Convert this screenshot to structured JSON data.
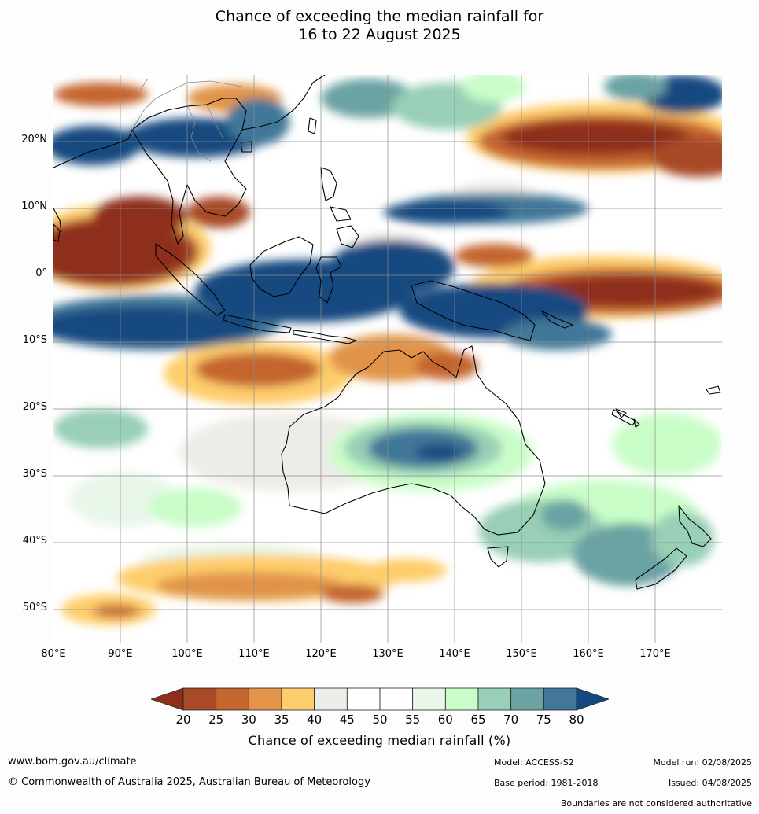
{
  "title": {
    "line1": "Chance of exceeding the median rainfall for",
    "line2": "16 to 22 August 2025"
  },
  "map": {
    "lat_labels": [
      "20°N",
      "10°N",
      "0°",
      "10°S",
      "20°S",
      "30°S",
      "40°S",
      "50°S"
    ],
    "lon_labels": [
      "80°E",
      "90°E",
      "100°E",
      "110°E",
      "120°E",
      "130°E",
      "140°E",
      "150°E",
      "160°E",
      "170°E"
    ]
  },
  "colorbar": {
    "ticks": [
      "20",
      "25",
      "30",
      "35",
      "40",
      "45",
      "50",
      "55",
      "60",
      "65",
      "70",
      "75",
      "80"
    ],
    "colors": [
      "#8e2f1c",
      "#a84a27",
      "#c5652f",
      "#e1944a",
      "#fecd6c",
      "#eeece8",
      "#ffffff",
      "#ffffff",
      "#e9f6ea",
      "#c9fdc8",
      "#98cfb6",
      "#6ba3a3",
      "#417798",
      "#124a80"
    ],
    "title": "Chance of exceeding median rainfall (%)"
  },
  "footer": {
    "url": "www.bom.gov.au/climate",
    "copyright": "© Commonwealth of Australia 2025, Australian Bureau of Meteorology",
    "model": "Model: ACCESS-S2",
    "base_period": "Base period: 1981-2018",
    "model_run": "Model run: 02/08/2025",
    "issued": "Issued: 04/08/2025",
    "disclaimer": "Boundaries are not considered authoritative"
  }
}
